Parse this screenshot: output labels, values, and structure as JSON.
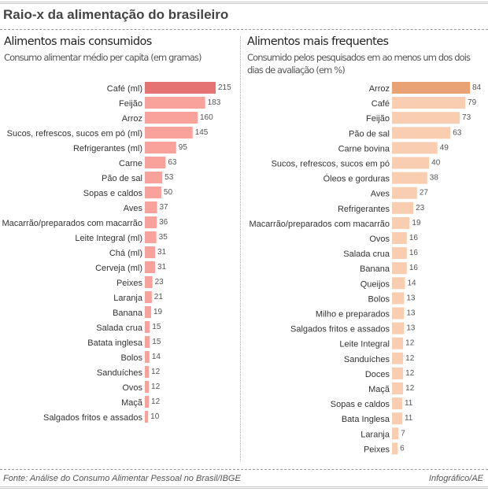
{
  "title": "Raio-x da alimentação do brasileiro",
  "footer": {
    "source": "Fonte: Análise do Consumo Alimentar Pessoal no Brasil/IBGE",
    "credit": "Infográfico/AE"
  },
  "left_panel": {
    "title": "Alimentos mais consumidos",
    "subtitle": "Consumo alimentar médio per capita (em gramas)"
  },
  "right_panel": {
    "title": "Alimentos mais frequentes",
    "subtitle": "Consumido pelos pesquisados em ao menos um dos dois dias de avaliação (em %)"
  },
  "colors": {
    "left_highlight": "#e57373",
    "left_bar": "#f9a19b",
    "right_highlight": "#e8a274",
    "right_bar": "#f9ceb0"
  },
  "chart_data": [
    {
      "type": "bar",
      "orientation": "horizontal",
      "title": "Alimentos mais consumidos",
      "subtitle": "Consumo alimentar médio per capita (em gramas)",
      "xlabel": "",
      "ylabel": "",
      "xlim": [
        0,
        215
      ],
      "grid": false,
      "categories": [
        "Café (ml)",
        "Feijão",
        "Arroz",
        "Sucos, refrescos, sucos em pó (ml)",
        "Refrigerantes (ml)",
        "Carne",
        "Pão de sal",
        "Sopas e caldos",
        "Aves",
        "Macarrão/preparados com macarrão",
        "Leite Integral (ml)",
        "Chá (ml)",
        "Cerveja (ml)",
        "Peixes",
        "Laranja",
        "Banana",
        "Salada crua",
        "Batata inglesa",
        "Bolos",
        "Sanduíches",
        "Ovos",
        "Maçã",
        "Salgados fritos e assados"
      ],
      "values": [
        215,
        183,
        160,
        145,
        95,
        63,
        53,
        50,
        37,
        36,
        35,
        31,
        31,
        23,
        21,
        19,
        15,
        15,
        14,
        12,
        12,
        12,
        10
      ],
      "highlight_index": 0
    },
    {
      "type": "bar",
      "orientation": "horizontal",
      "title": "Alimentos mais frequentes",
      "subtitle": "Consumido pelos pesquisados em ao menos um dos dois dias de avaliação (em %)",
      "xlabel": "",
      "ylabel": "",
      "xlim": [
        0,
        84
      ],
      "grid": false,
      "categories": [
        "Arroz",
        "Café",
        "Feijão",
        "Pão de sal",
        "Carne bovina",
        "Sucos, refrescos, sucos em pó",
        "Óleos e gorduras",
        "Aves",
        "Refrigerantes",
        "Macarrão/preparados com macarrão",
        "Ovos",
        "Salada crua",
        "Banana",
        "Queijos",
        "Bolos",
        "Milho e preparados",
        "Salgados fritos e assados",
        "Leite Integral",
        "Sanduíches",
        "Doces",
        "Maçã",
        "Sopas e caldos",
        "Bata Inglesa",
        "Laranja",
        "Peixes"
      ],
      "values": [
        84,
        79,
        73,
        63,
        49,
        40,
        38,
        27,
        23,
        19,
        16,
        16,
        16,
        14,
        13,
        13,
        13,
        12,
        12,
        12,
        12,
        11,
        11,
        7,
        6
      ],
      "highlight_index": 0
    }
  ]
}
